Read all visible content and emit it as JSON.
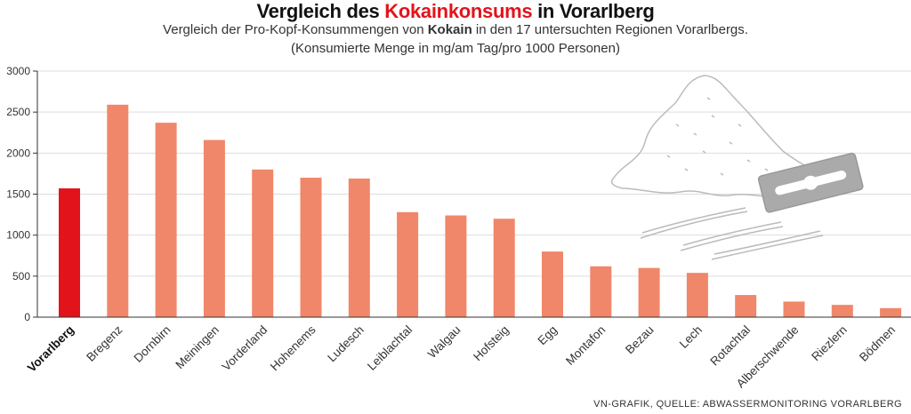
{
  "header": {
    "title_pre": "Vergleich des ",
    "title_highlight": "Kokainkonsums",
    "title_post": " in Vorarlberg",
    "subtitle_pre": "Vergleich der Pro-Kopf-Konsummengen von ",
    "subtitle_bold": "Kokain",
    "subtitle_post": " in den 17 untersuchten Regionen Vorarlbergs.",
    "subtitle_line2": "(Konsumierte Menge in mg/am Tag/pro 1000 Personen)"
  },
  "source": "VN-GRAFIK, QUELLE: ABWASSERMONITORING VORARLBERG",
  "colors": {
    "highlight_bar": "#e3131b",
    "bar": "#f0876a",
    "grid": "#dddddd",
    "axis": "#333333",
    "illustration": "#bbbbbb"
  },
  "illustration": "cocaine-pile-razor-blade-lines",
  "chart_data": {
    "type": "bar",
    "title": "Vergleich des Kokainkonsums in Vorarlberg",
    "categories": [
      "Vorarlberg",
      "Bregenz",
      "Dornbirn",
      "Meiningen",
      "Vorderland",
      "Hohenems",
      "Ludesch",
      "Leiblachtal",
      "Walgau",
      "Hofsteig",
      "Egg",
      "Montafon",
      "Bezau",
      "Lech",
      "Rotachtal",
      "Alberschwende",
      "Riezlern",
      "Bödmen"
    ],
    "values": [
      1570,
      2590,
      2370,
      2160,
      1800,
      1700,
      1690,
      1280,
      1240,
      1200,
      800,
      620,
      600,
      540,
      270,
      190,
      150,
      110
    ],
    "highlight_index": 0,
    "ylim": [
      0,
      3000
    ],
    "yticks": [
      0,
      500,
      1000,
      1500,
      2000,
      2500,
      3000
    ],
    "ylabel": "",
    "xlabel": "",
    "grid": true
  }
}
